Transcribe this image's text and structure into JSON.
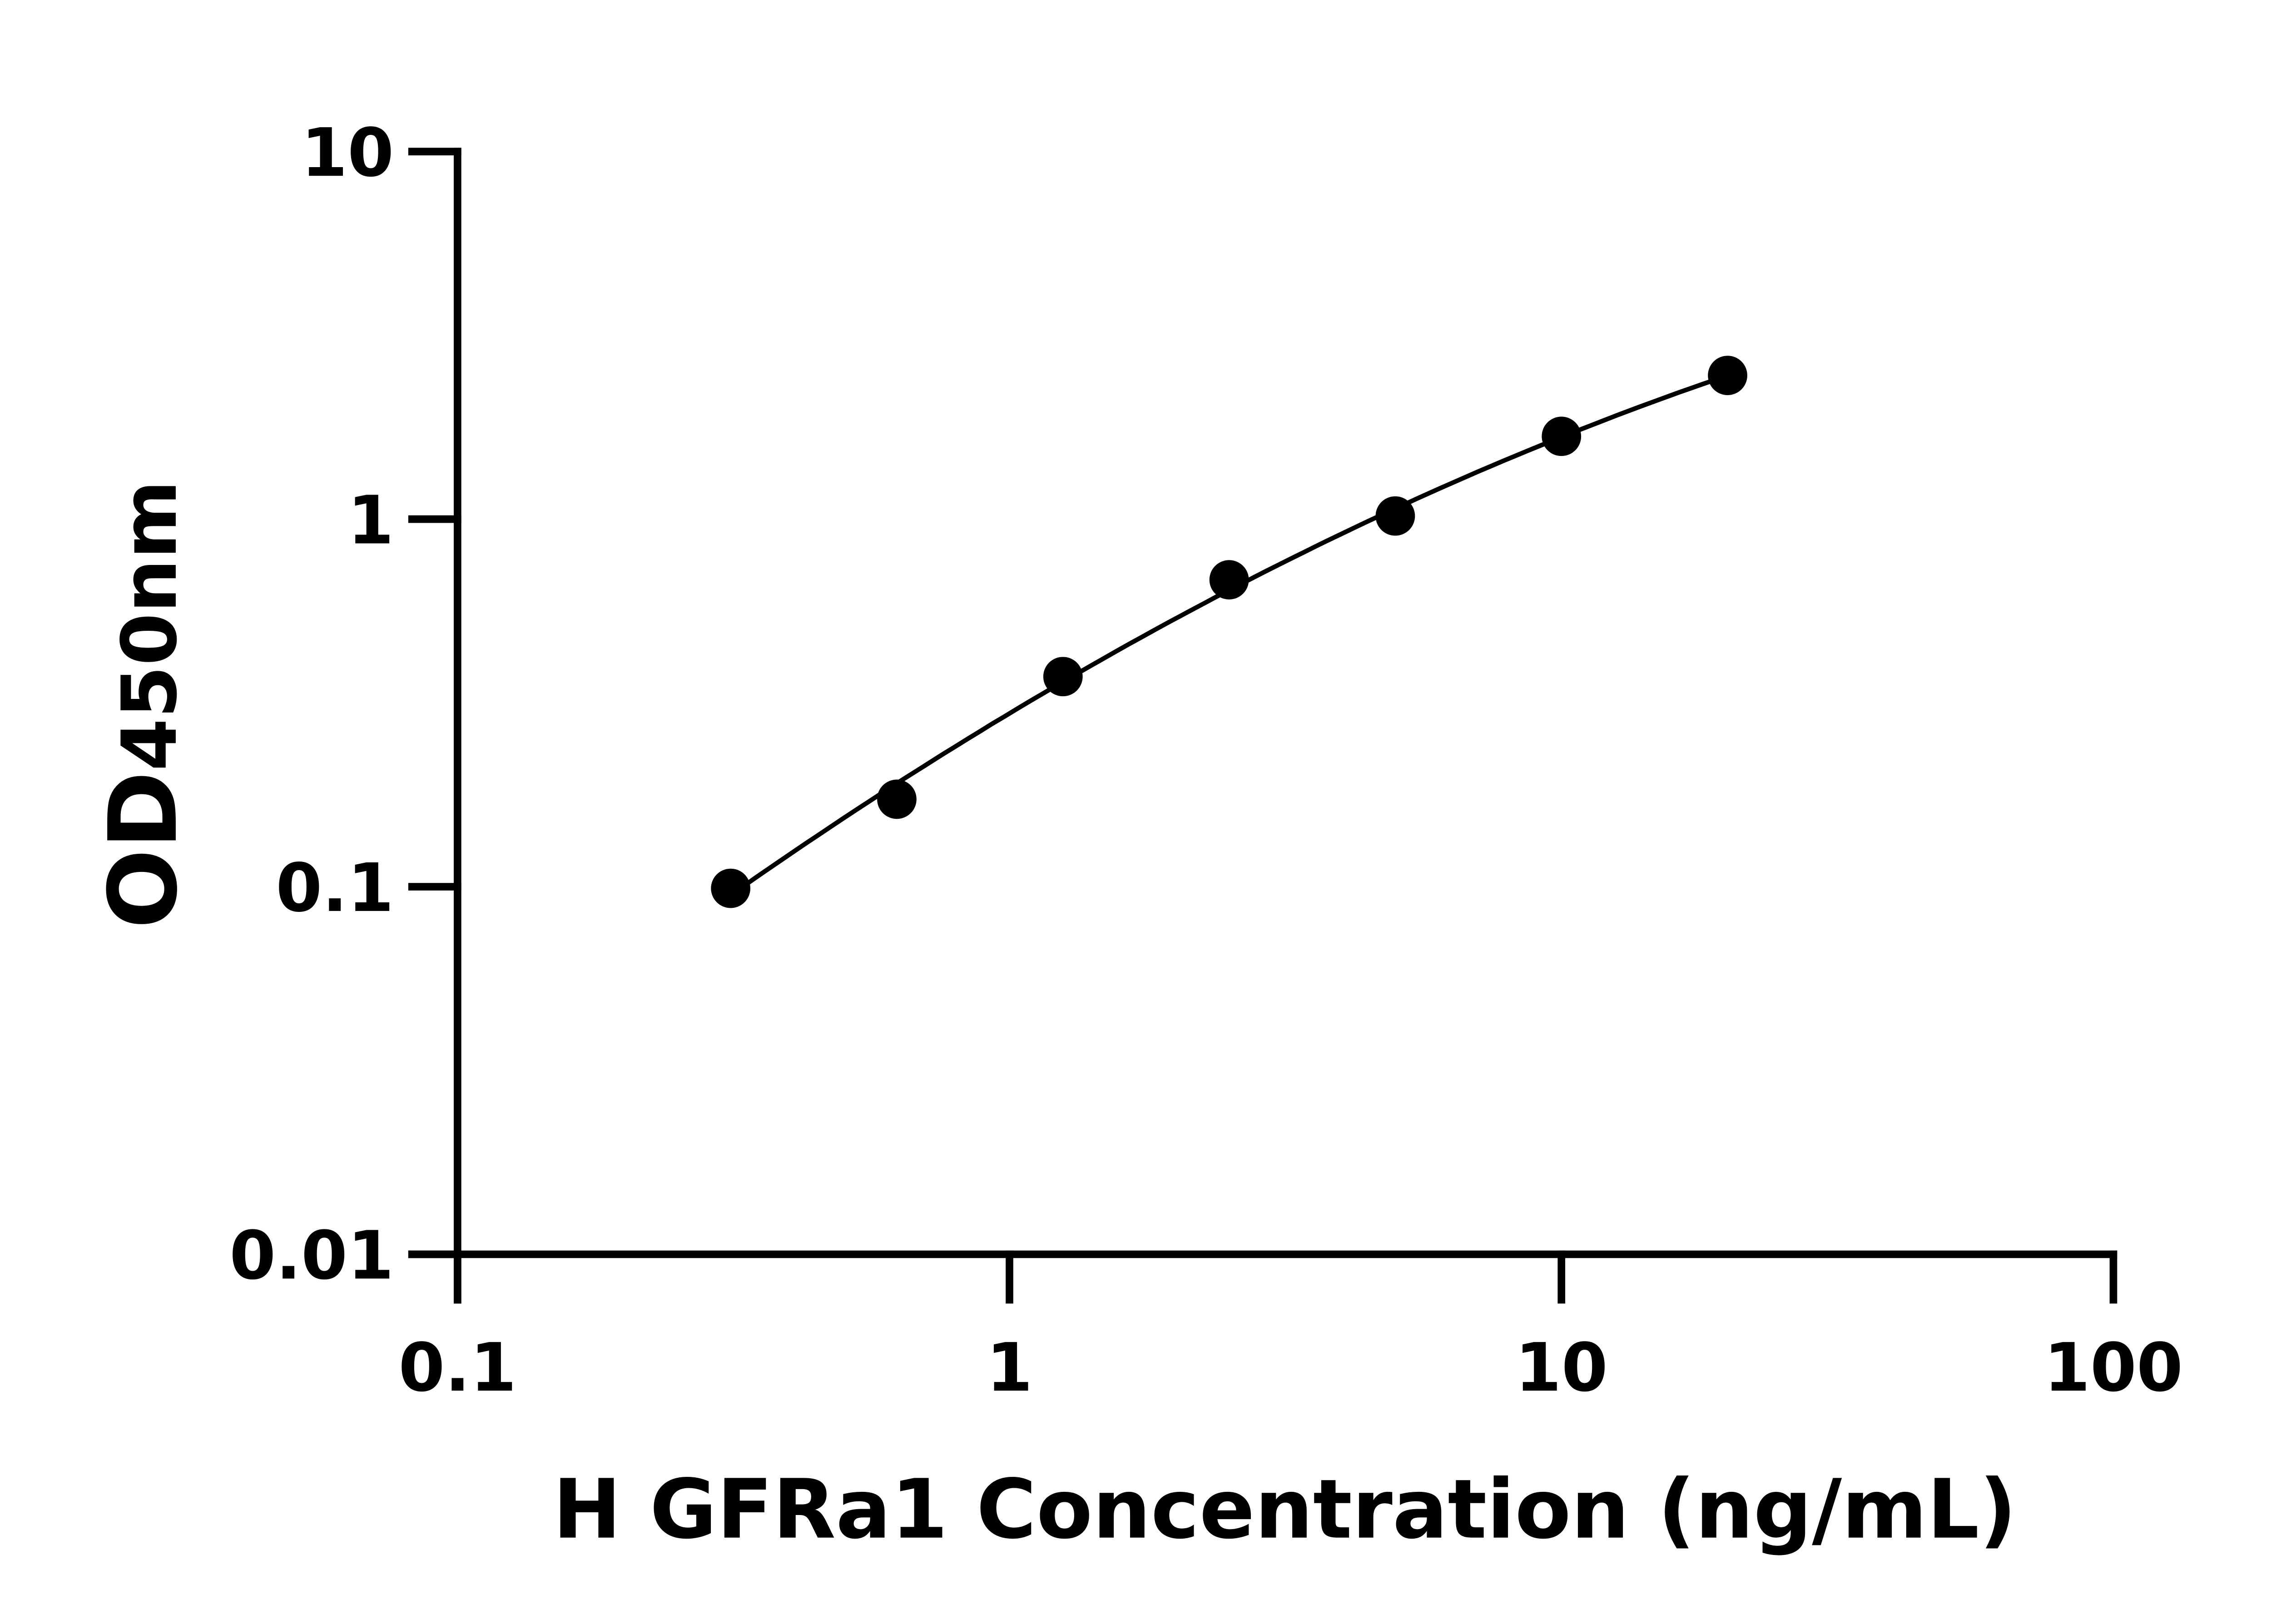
{
  "chart_data": {
    "type": "scatter",
    "title": "",
    "xlabel": "H GFRa1 Concentration (ng/mL)",
    "ylabel": "OD",
    "ylabel_subscript": "450nm",
    "x_scale": "log",
    "y_scale": "log",
    "xlim": [
      0.1,
      100
    ],
    "ylim": [
      0.01,
      10
    ],
    "x_ticks": [
      "0.1",
      "1",
      "10",
      "100"
    ],
    "y_ticks": [
      "0.01",
      "0.1",
      "1",
      "10"
    ],
    "grid": false,
    "fit_curve": true,
    "marker_color": "#000000",
    "points": [
      {
        "x": 0.3125,
        "y": 0.099
      },
      {
        "x": 0.625,
        "y": 0.173
      },
      {
        "x": 1.25,
        "y": 0.373
      },
      {
        "x": 2.5,
        "y": 0.684
      },
      {
        "x": 5,
        "y": 1.02
      },
      {
        "x": 10,
        "y": 1.68
      },
      {
        "x": 20,
        "y": 2.46
      }
    ]
  }
}
